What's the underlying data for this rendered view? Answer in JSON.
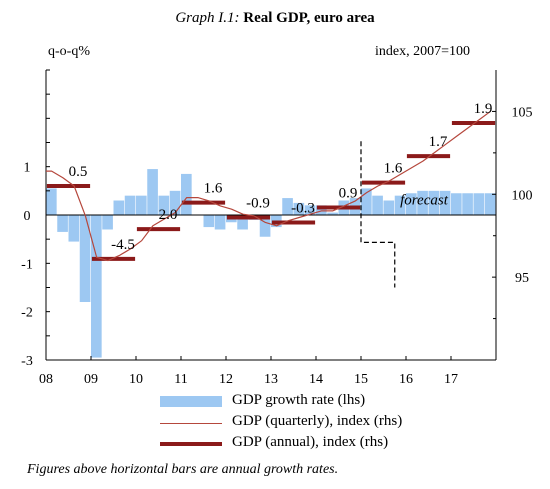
{
  "title_prefix": "Graph I.1:",
  "title_main": "Real GDP, euro area",
  "left_unit": "q-o-q%",
  "right_unit": "index,  2007=100",
  "forecast_label": "forecast",
  "footnote": "Figures above horizontal bars are annual growth rates.",
  "chart_data": {
    "type": "bar+line",
    "title": "Real GDP, euro area",
    "x_tick_labels": [
      "08",
      "09",
      "10",
      "11",
      "12",
      "13",
      "14",
      "15",
      "16",
      "17"
    ],
    "x_range": [
      2008.0,
      2018.0
    ],
    "ylim_left": [
      -3,
      3
    ],
    "ylim_right": [
      90,
      107.5
    ],
    "yticks_left": [
      -3,
      -2,
      -1,
      0,
      1
    ],
    "yticks_right": [
      95,
      100,
      105
    ],
    "forecast_start_quarter": "2015Q4",
    "quarters": [
      "2008Q1",
      "2008Q2",
      "2008Q3",
      "2008Q4",
      "2009Q1",
      "2009Q2",
      "2009Q3",
      "2009Q4",
      "2010Q1",
      "2010Q2",
      "2010Q3",
      "2010Q4",
      "2011Q1",
      "2011Q2",
      "2011Q3",
      "2011Q4",
      "2012Q1",
      "2012Q2",
      "2012Q3",
      "2012Q4",
      "2013Q1",
      "2013Q2",
      "2013Q3",
      "2013Q4",
      "2014Q1",
      "2014Q2",
      "2014Q3",
      "2014Q4",
      "2015Q1",
      "2015Q2",
      "2015Q3",
      "2015Q4",
      "2016Q1",
      "2016Q2",
      "2016Q3",
      "2016Q4",
      "2017Q1",
      "2017Q2",
      "2017Q3",
      "2017Q4"
    ],
    "series": [
      {
        "name": "GDP growth rate (lhs)",
        "axis": "left",
        "kind": "bar",
        "color": "#9dc8f2",
        "values": [
          0.55,
          -0.35,
          -0.55,
          -1.8,
          -2.95,
          -0.3,
          0.3,
          0.4,
          0.4,
          0.95,
          0.4,
          0.5,
          0.85,
          0.0,
          -0.25,
          -0.3,
          -0.15,
          -0.3,
          -0.1,
          -0.45,
          -0.25,
          0.35,
          0.25,
          0.2,
          0.2,
          0.05,
          0.3,
          0.35,
          0.55,
          0.4,
          0.3,
          0.4,
          0.45,
          0.5,
          0.5,
          0.5,
          0.45,
          0.45,
          0.45,
          0.45
        ]
      },
      {
        "name": "GDP (quarterly), index (rhs)",
        "axis": "right",
        "kind": "line",
        "color": "#b5473c",
        "values": [
          101.4,
          101.0,
          100.5,
          98.7,
          96.2,
          96.0,
          96.3,
          96.7,
          97.2,
          98.1,
          98.5,
          98.9,
          99.8,
          99.8,
          99.6,
          99.3,
          99.1,
          98.8,
          98.7,
          98.3,
          98.1,
          98.4,
          98.6,
          98.8,
          99.0,
          99.0,
          99.3,
          99.6,
          100.1,
          100.5,
          100.8,
          101.2,
          101.6,
          102.0,
          102.5,
          103.0,
          103.5,
          104.0,
          104.5,
          105.0
        ]
      },
      {
        "name": "GDP (annual), index (rhs)",
        "axis": "right",
        "kind": "step",
        "color": "#8b1a1a",
        "years": [
          2008,
          2009,
          2010,
          2011,
          2012,
          2013,
          2014,
          2015,
          2016,
          2017
        ],
        "values": [
          100.5,
          96.1,
          97.9,
          99.5,
          98.6,
          98.3,
          99.2,
          100.7,
          102.3,
          104.3
        ],
        "growth_labels": [
          "0.5",
          "-4.5",
          "2.0",
          "1.6",
          "-0.9",
          "-0.3",
          "0.9",
          "1.6",
          "1.7",
          "1.9"
        ]
      }
    ],
    "legend": {
      "placement": "bottom-center",
      "entries": [
        "GDP growth rate (lhs)",
        "GDP (quarterly), index (rhs)",
        "GDP (annual), index (rhs)"
      ]
    }
  }
}
